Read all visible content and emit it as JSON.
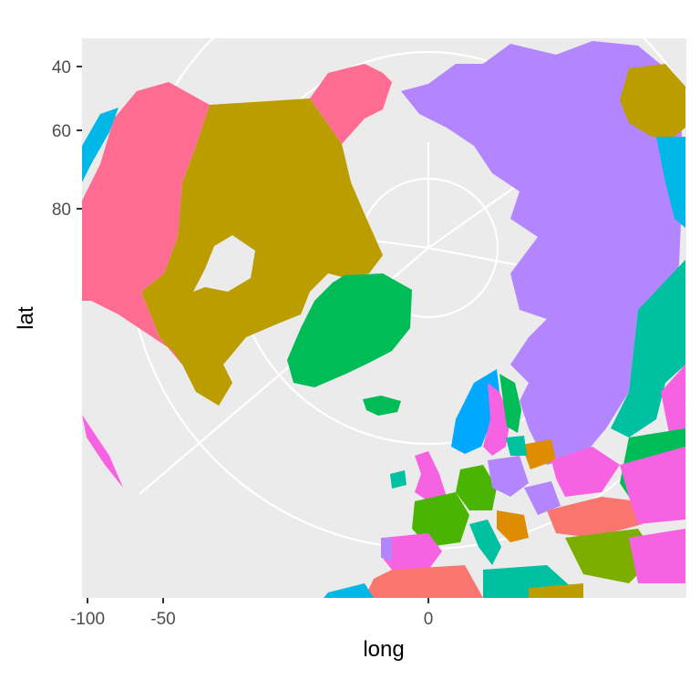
{
  "chart_data": {
    "type": "map",
    "projection": "orthographic (north polar view)",
    "xlabel": "long",
    "ylabel": "lat",
    "x_ticks": [
      "-100",
      "-50",
      "0"
    ],
    "y_ticks": [
      "40",
      "60",
      "80"
    ],
    "grid": true,
    "panel_background": "#ebebeb",
    "grid_color": "#ffffff",
    "region_fill_palette": [
      "#ff6c91",
      "#bc9d00",
      "#00bc56",
      "#b385ff",
      "#00b8e7",
      "#00c0a2",
      "#f662e1",
      "#7cae00",
      "#de8c00",
      "#f8766d",
      "#00a9ff",
      "#49b500"
    ]
  }
}
